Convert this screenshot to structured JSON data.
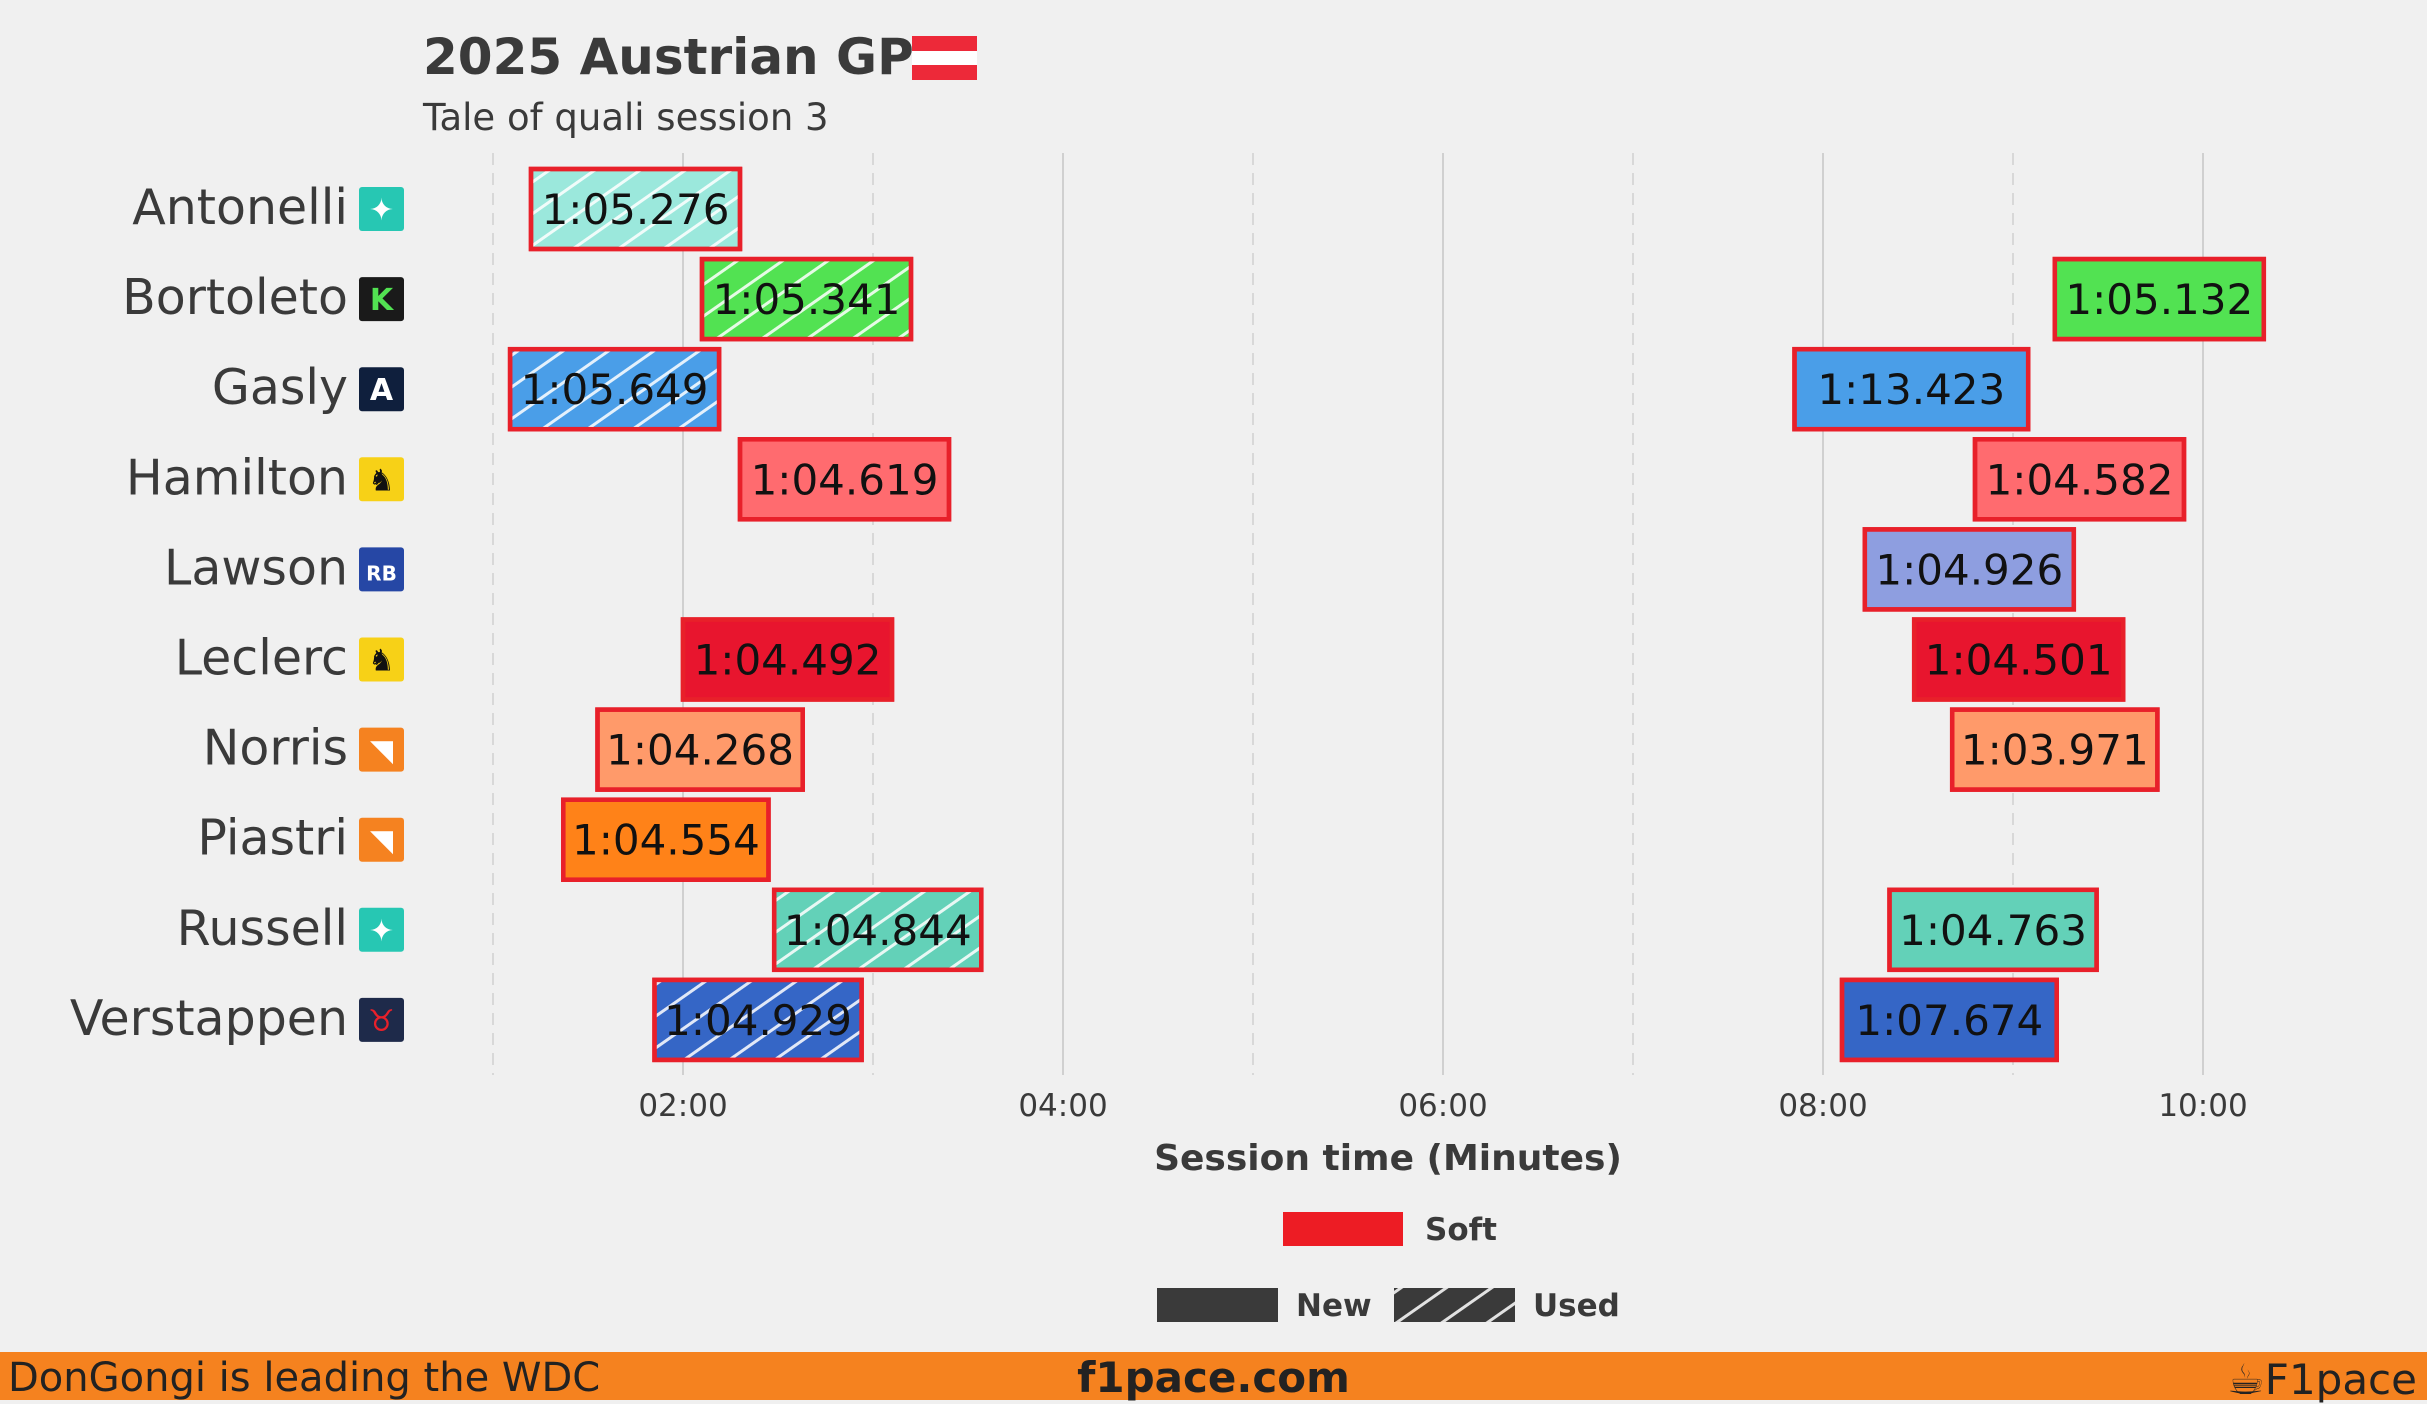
{
  "header": {
    "title": "2025 Austrian GP",
    "subtitle": "Tale of quali session 3"
  },
  "footer": {
    "left": "DonGongi is leading the WDC",
    "center": "f1pace.com",
    "right": "F1pace"
  },
  "legend": {
    "compound": "Soft",
    "new": "New",
    "used": "Used"
  },
  "colors": {
    "soft": "#ed1c24",
    "outline": "#e8202a",
    "footer": "#f5821f",
    "flag_red": "#ed2939"
  },
  "chart_data": {
    "type": "bar",
    "xlabel": "Session time (Minutes)",
    "xlim": [
      0,
      12.8
    ],
    "xticks": [
      {
        "v": 2,
        "label": "02:00"
      },
      {
        "v": 4,
        "label": "04:00"
      },
      {
        "v": 6,
        "label": "06:00"
      },
      {
        "v": 8,
        "label": "08:00"
      },
      {
        "v": 10,
        "label": "10:00"
      }
    ],
    "minor_grid": [
      1,
      3,
      5,
      7,
      9
    ],
    "drivers": [
      {
        "name": "Antonelli",
        "team_icon": "mercedes-icon",
        "laps": [
          {
            "start": 1.2,
            "end": 2.3,
            "time": "1:05.276",
            "tyre": "Soft",
            "used": true,
            "color": "#9be8dc"
          }
        ]
      },
      {
        "name": "Bortoleto",
        "team_icon": "sauber-icon",
        "laps": [
          {
            "start": 2.1,
            "end": 3.2,
            "time": "1:05.341",
            "tyre": "Soft",
            "used": true,
            "color": "#52e252"
          },
          {
            "start": 9.22,
            "end": 10.32,
            "time": "1:05.132",
            "tyre": "Soft",
            "used": false,
            "color": "#52e252"
          }
        ]
      },
      {
        "name": "Gasly",
        "team_icon": "alpine-icon",
        "laps": [
          {
            "start": 1.09,
            "end": 2.19,
            "time": "1:05.649",
            "tyre": "Soft",
            "used": true,
            "color": "#4a9ee8"
          },
          {
            "start": 7.85,
            "end": 9.08,
            "time": "1:13.423",
            "tyre": "Soft",
            "used": false,
            "color": "#4a9ee8"
          }
        ]
      },
      {
        "name": "Hamilton",
        "team_icon": "ferrari-icon",
        "laps": [
          {
            "start": 2.3,
            "end": 3.4,
            "time": "1:04.619",
            "tyre": "Soft",
            "used": false,
            "color": "#ff6b6f"
          },
          {
            "start": 8.8,
            "end": 9.9,
            "time": "1:04.582",
            "tyre": "Soft",
            "used": false,
            "color": "#ff6b6f"
          }
        ]
      },
      {
        "name": "Lawson",
        "team_icon": "racing-bulls-icon",
        "laps": [
          {
            "start": 8.22,
            "end": 9.32,
            "time": "1:04.926",
            "tyre": "Soft",
            "used": false,
            "color": "#8e9ee0"
          }
        ]
      },
      {
        "name": "Leclerc",
        "team_icon": "ferrari-icon",
        "laps": [
          {
            "start": 2.0,
            "end": 3.1,
            "time": "1:04.492",
            "tyre": "Soft",
            "used": false,
            "color": "#e8152e"
          },
          {
            "start": 8.48,
            "end": 9.58,
            "time": "1:04.501",
            "tyre": "Soft",
            "used": false,
            "color": "#e8152e"
          }
        ]
      },
      {
        "name": "Norris",
        "team_icon": "mclaren-icon",
        "laps": [
          {
            "start": 1.55,
            "end": 2.63,
            "time": "1:04.268",
            "tyre": "Soft",
            "used": false,
            "color": "#ff9a6a"
          },
          {
            "start": 8.68,
            "end": 9.76,
            "time": "1:03.971",
            "tyre": "Soft",
            "used": false,
            "color": "#ff9a6a"
          }
        ]
      },
      {
        "name": "Piastri",
        "team_icon": "mclaren-icon",
        "laps": [
          {
            "start": 1.37,
            "end": 2.45,
            "time": "1:04.554",
            "tyre": "Soft",
            "used": false,
            "color": "#ff8218"
          }
        ]
      },
      {
        "name": "Russell",
        "team_icon": "mercedes-icon",
        "laps": [
          {
            "start": 2.48,
            "end": 3.57,
            "time": "1:04.844",
            "tyre": "Soft",
            "used": true,
            "color": "#63d1b8"
          },
          {
            "start": 8.35,
            "end": 9.44,
            "time": "1:04.763",
            "tyre": "Soft",
            "used": false,
            "color": "#63d1b8"
          }
        ]
      },
      {
        "name": "Verstappen",
        "team_icon": "red-bull-icon",
        "laps": [
          {
            "start": 1.85,
            "end": 2.94,
            "time": "1:04.929",
            "tyre": "Soft",
            "used": true,
            "color": "#3566c6"
          },
          {
            "start": 8.1,
            "end": 9.23,
            "time": "1:07.674",
            "tyre": "Soft",
            "used": false,
            "color": "#3566c6"
          }
        ]
      }
    ]
  }
}
